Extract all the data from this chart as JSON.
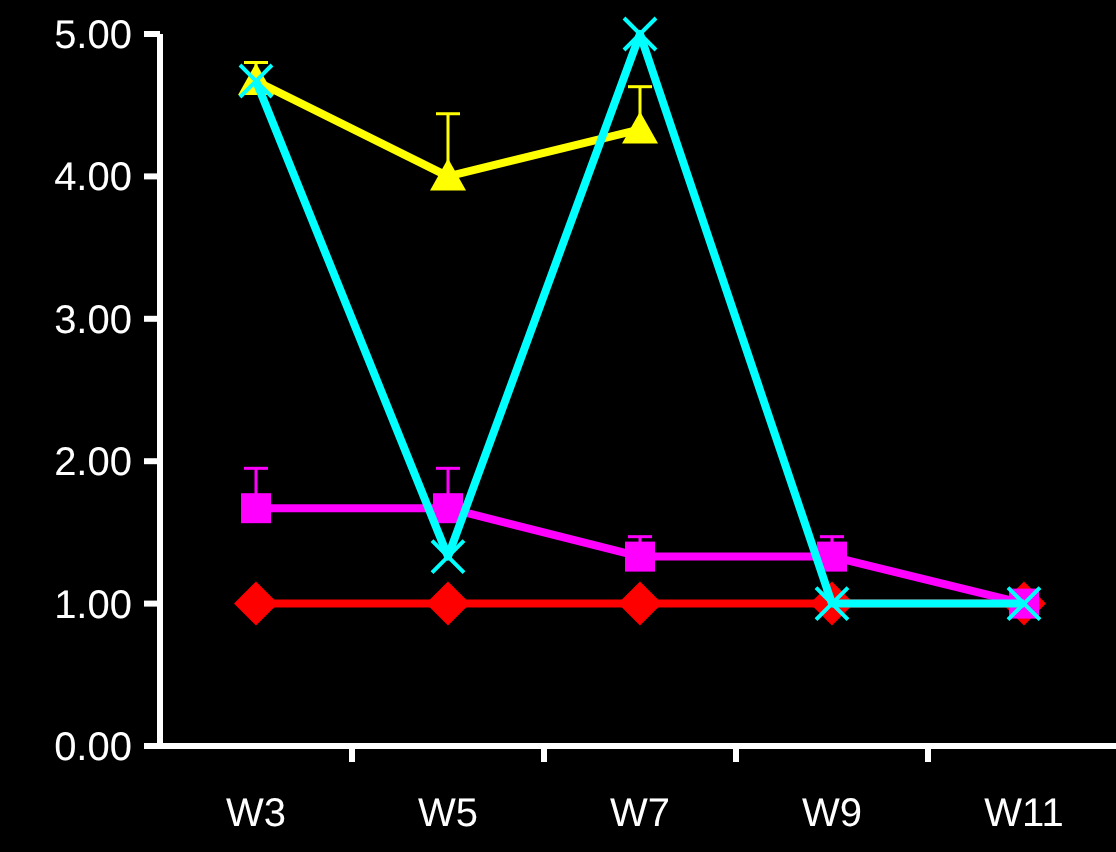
{
  "chart_data": {
    "type": "line",
    "categories": [
      "W3",
      "W5",
      "W7",
      "W9",
      "W11"
    ],
    "ylim": [
      0,
      5
    ],
    "yticks": [
      {
        "value": 0,
        "label": "0.00"
      },
      {
        "value": 1,
        "label": "1.00"
      },
      {
        "value": 2,
        "label": "2.00"
      },
      {
        "value": 3,
        "label": "3.00"
      },
      {
        "value": 4,
        "label": "4.00"
      },
      {
        "value": 5,
        "label": "5.00"
      }
    ],
    "grid": false,
    "series": [
      {
        "color": "#ff0000",
        "marker": "diamond",
        "values": [
          1,
          1,
          1,
          1,
          1
        ]
      },
      {
        "color": "#ff00ff",
        "marker": "square",
        "values": [
          1.67,
          1.67,
          1.33,
          1.33,
          1
        ],
        "errors": [
          [
            1.67,
            1.95
          ],
          [
            1.67,
            1.95
          ],
          [
            1.33,
            1.47
          ],
          [
            1.33,
            1.47
          ],
          null
        ]
      },
      {
        "color": "#ffff00",
        "marker": "triangle",
        "values": [
          4.67,
          4,
          4.33,
          null,
          null
        ],
        "errors": [
          [
            4.67,
            4.8
          ],
          [
            4,
            4.44
          ],
          [
            4.33,
            4.63
          ],
          null,
          null
        ]
      },
      {
        "color": "#00ffff",
        "marker": "cross",
        "values": [
          4.67,
          1.33,
          5,
          1,
          1
        ]
      }
    ]
  }
}
